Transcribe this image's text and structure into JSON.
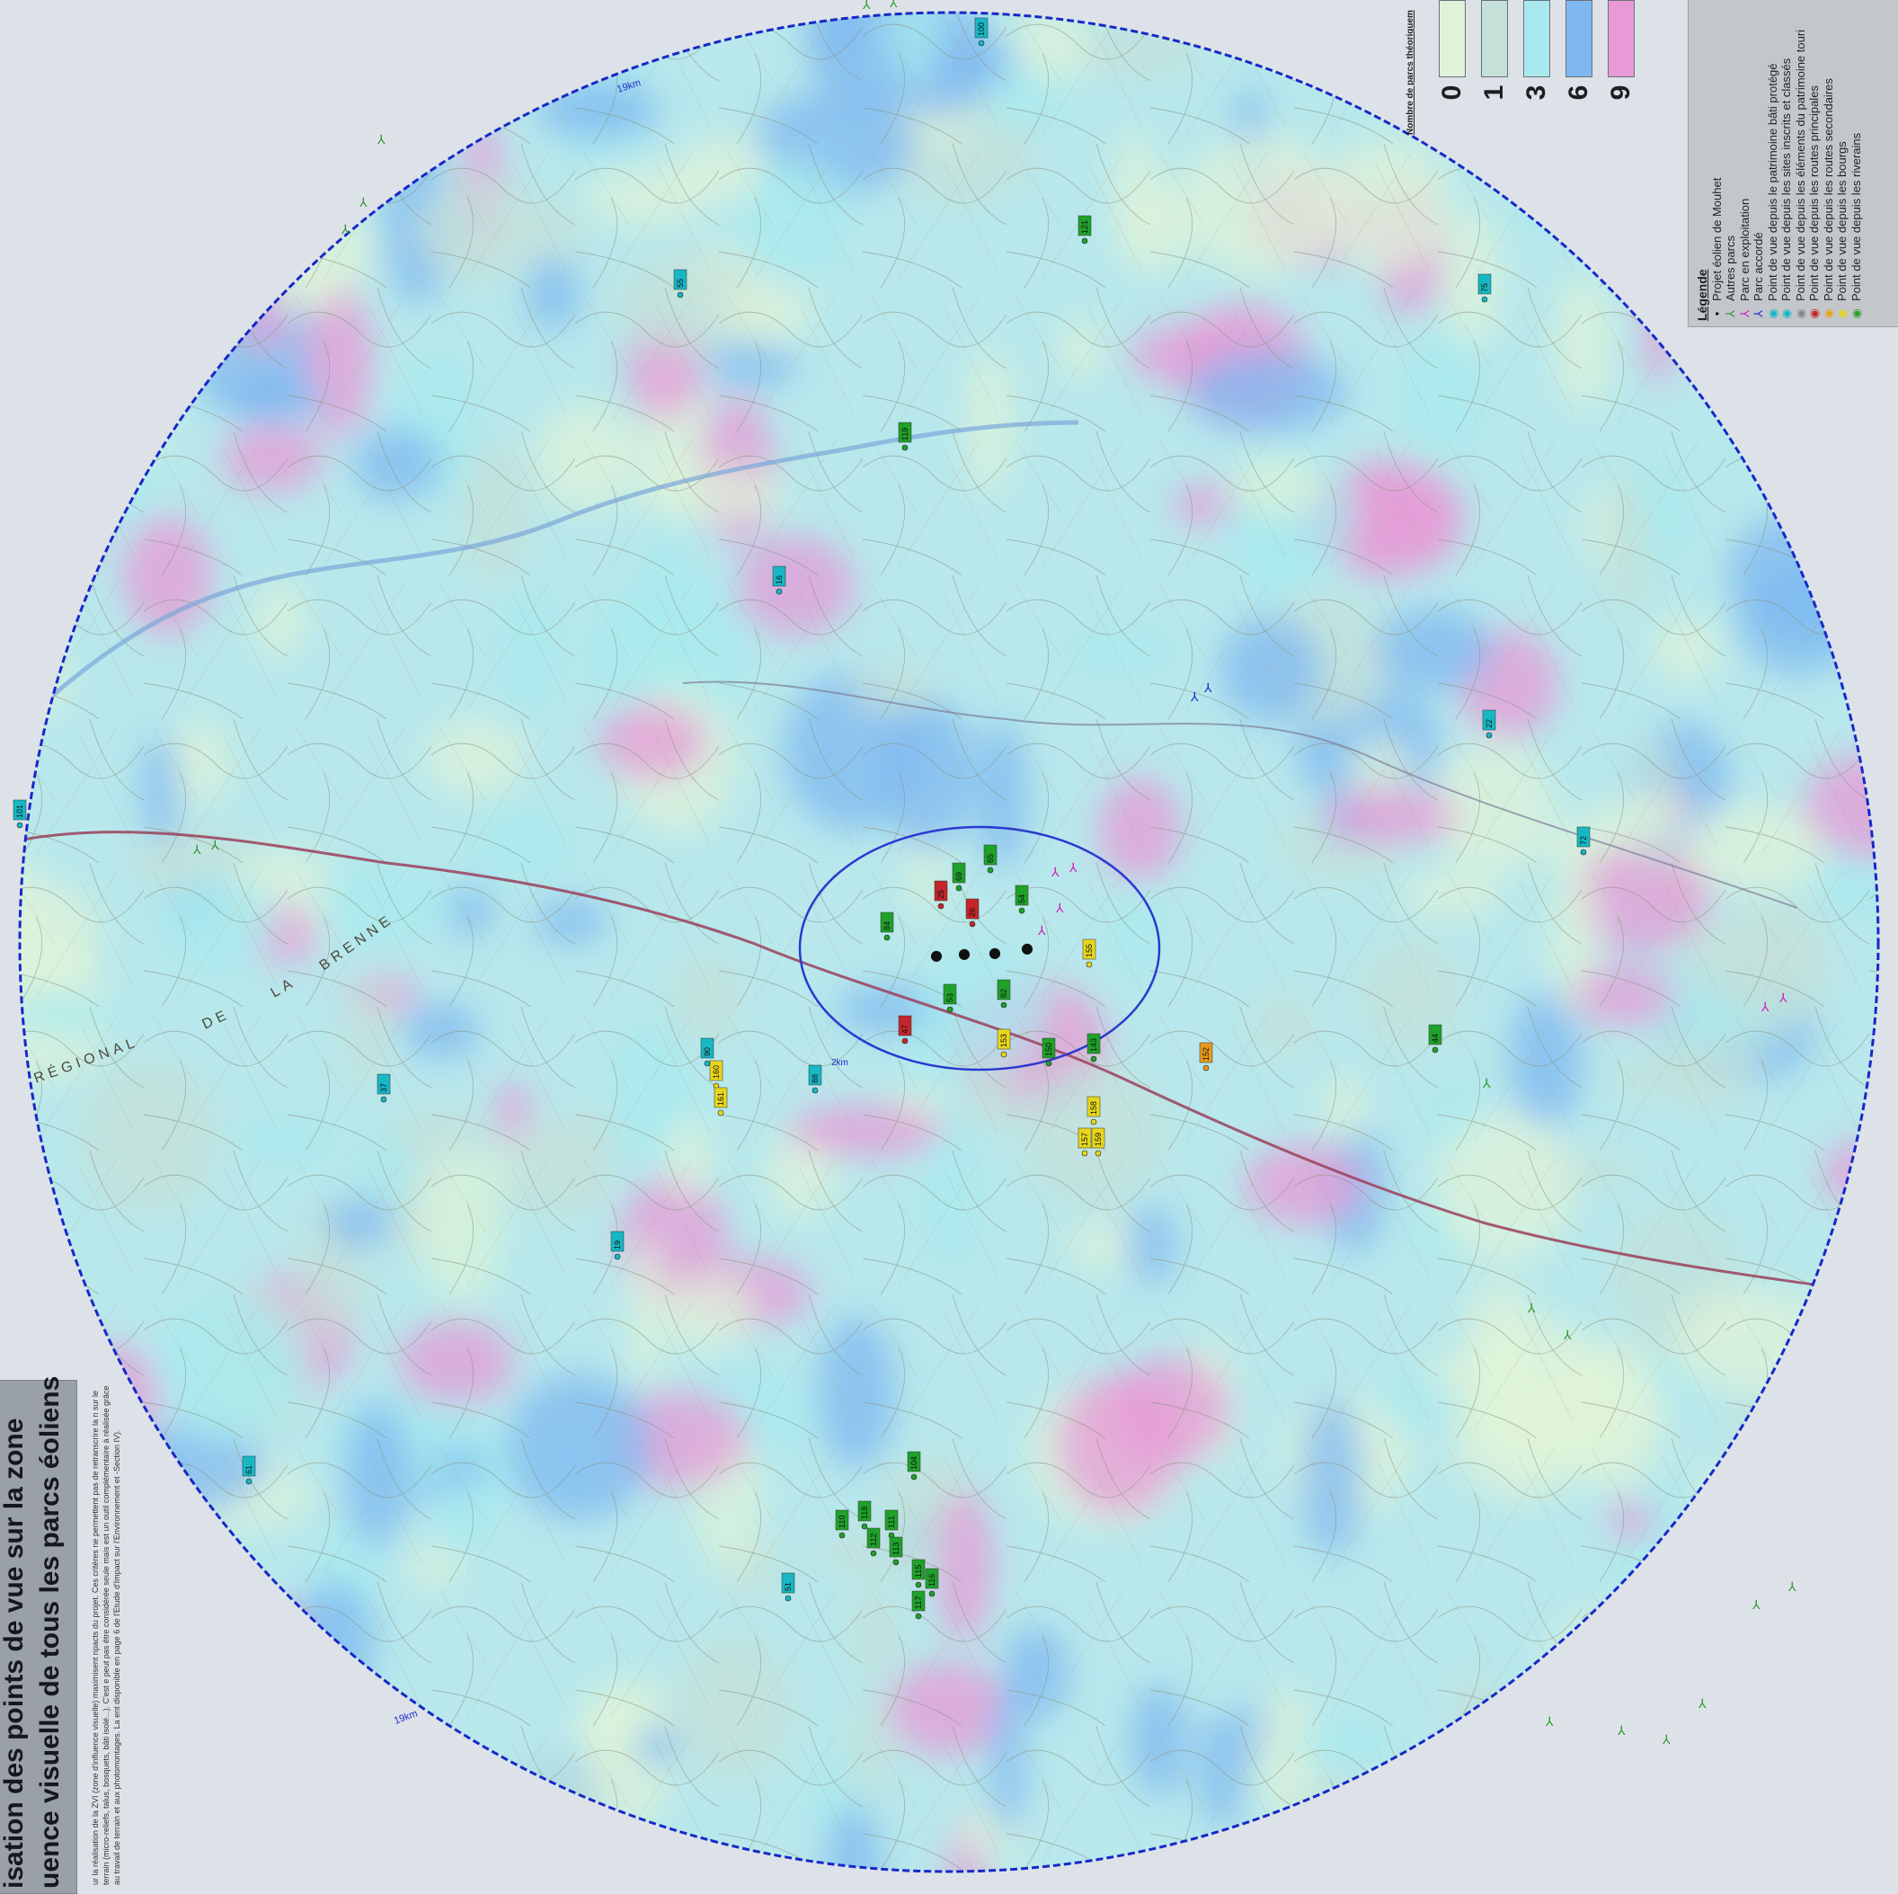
{
  "title": {
    "line1": "isation des points de vue sur la zone",
    "line2": "uence visuelle de tous les parcs éoliens",
    "description": "ur la réalisation de la ZVI (zone d'influence visuelle) maximisent npacts du projet. Ces critères ne permettent pas de retranscrire la n sur le terrain (micro-reliefs, talus, bosquets, bâti isolé...). C'est e peut pas être considérée seule mais est un outil complémentaire à réalisée grâce au travail de terrain et aux photomontages. La ent disponible en page 6 de l'Etude d'Impact sur l'Environnement et -Section IV)."
  },
  "legend": {
    "title": "Légende",
    "items": [
      {
        "symbol": "•",
        "color": "#111111",
        "label": "Projet éolien de Mouhet"
      },
      {
        "symbol": "⅄",
        "color": "#2e9a2e",
        "label": "Autres parcs"
      },
      {
        "symbol": "⅄",
        "color": "#d21fb8",
        "label": "Parc en exploitation"
      },
      {
        "symbol": "⅄",
        "color": "#1d2fc8",
        "label": "Parc accordé"
      },
      {
        "symbol": "◉",
        "color": "#17b7c4",
        "label": "Point de vue depuis le patrimoine bâti protégé"
      },
      {
        "symbol": "◉",
        "color": "#17b7c4",
        "label": "Point de vue depuis les sites inscrits et classés"
      },
      {
        "symbol": "◉",
        "color": "#888888",
        "label": "Point de vue depuis les éléments du patrimoine touri"
      },
      {
        "symbol": "◉",
        "color": "#c4252a",
        "label": "Point de vue depuis les routes principales"
      },
      {
        "symbol": "◉",
        "color": "#e6a21e",
        "label": "Point de vue depuis les routes secondaires"
      },
      {
        "symbol": "◉",
        "color": "#e6d21e",
        "label": "Point de vue depuis les bourgs"
      },
      {
        "symbol": "◉",
        "color": "#2ea02e",
        "label": "Point de vue depuis les riverains"
      }
    ]
  },
  "scale": {
    "title": "Nombre de parcs théoriquem",
    "classes": [
      {
        "value": "0",
        "color": "#dff3d8"
      },
      {
        "value": "1",
        "color": "#c4e0d8"
      },
      {
        "value": "3",
        "color": "#a7e9ee"
      },
      {
        "value": "6",
        "color": "#7fb8f0"
      },
      {
        "value": "9",
        "color": "#e79ad6"
      }
    ]
  },
  "map": {
    "radius_label": "19km",
    "inner_radius_label": "2km",
    "place_labels": [
      "RÉGIONAL",
      "DE",
      "LA",
      "BRENNE"
    ],
    "viewpoints": [
      {
        "label": "69",
        "type": "riverains"
      },
      {
        "label": "65",
        "type": "riverains"
      },
      {
        "label": "25",
        "type": "routes_principales"
      },
      {
        "label": "26",
        "type": "routes_principales"
      },
      {
        "label": "47",
        "type": "routes_principales"
      },
      {
        "label": "155",
        "type": "bourgs"
      },
      {
        "label": "160",
        "type": "bourgs"
      },
      {
        "label": "161",
        "type": "bourgs"
      },
      {
        "label": "158",
        "type": "bourgs"
      },
      {
        "label": "159",
        "type": "bourgs"
      },
      {
        "label": "153",
        "type": "bourgs"
      },
      {
        "label": "152",
        "type": "routes_secondaires"
      },
      {
        "label": "150",
        "type": "riverains"
      },
      {
        "label": "157",
        "type": "bourgs"
      },
      {
        "label": "54",
        "type": "riverains"
      },
      {
        "label": "53",
        "type": "riverains"
      },
      {
        "label": "84",
        "type": "riverains"
      },
      {
        "label": "82",
        "type": "riverains"
      },
      {
        "label": "143",
        "type": "riverains"
      },
      {
        "label": "44",
        "type": "riverains"
      },
      {
        "label": "104",
        "type": "riverains"
      },
      {
        "label": "111",
        "type": "riverains"
      },
      {
        "label": "112",
        "type": "riverains"
      },
      {
        "label": "113",
        "type": "riverains"
      },
      {
        "label": "115",
        "type": "riverains"
      },
      {
        "label": "116",
        "type": "riverains"
      },
      {
        "label": "117",
        "type": "riverains"
      },
      {
        "label": "110",
        "type": "riverains"
      },
      {
        "label": "121",
        "type": "riverains"
      },
      {
        "label": "118",
        "type": "riverains"
      },
      {
        "label": "119",
        "type": "riverains"
      },
      {
        "label": "100",
        "type": "patrimoine"
      },
      {
        "label": "16",
        "type": "patrimoine"
      },
      {
        "label": "55",
        "type": "patrimoine"
      },
      {
        "label": "75",
        "type": "patrimoine"
      },
      {
        "label": "22",
        "type": "patrimoine"
      },
      {
        "label": "72",
        "type": "patrimoine"
      },
      {
        "label": "101",
        "type": "patrimoine"
      },
      {
        "label": "90",
        "type": "patrimoine"
      },
      {
        "label": "88",
        "type": "patrimoine"
      },
      {
        "label": "37",
        "type": "patrimoine"
      },
      {
        "label": "51",
        "type": "patrimoine"
      },
      {
        "label": "19",
        "type": "patrimoine"
      },
      {
        "label": "61",
        "type": "patrimoine"
      }
    ]
  }
}
